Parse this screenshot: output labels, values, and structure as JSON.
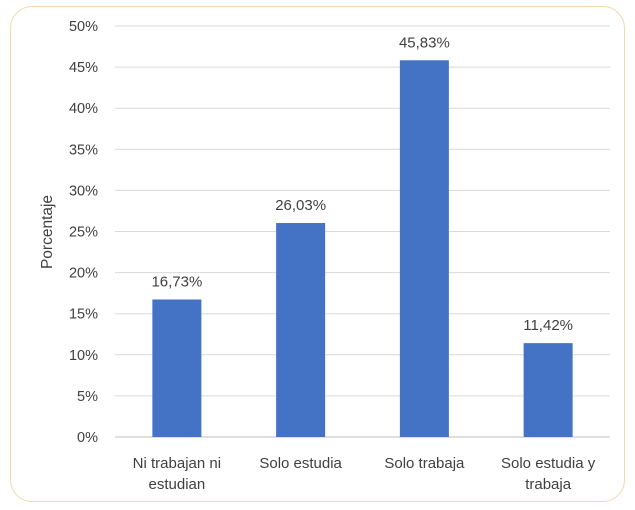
{
  "chart_data": {
    "type": "bar",
    "title": "",
    "xlabel": "",
    "ylabel": "Porcentaje",
    "ylim": [
      0,
      50
    ],
    "yticks": [
      {
        "value": 0,
        "label": "0%"
      },
      {
        "value": 5,
        "label": "5%"
      },
      {
        "value": 10,
        "label": "10%"
      },
      {
        "value": 15,
        "label": "15%"
      },
      {
        "value": 20,
        "label": "20%"
      },
      {
        "value": 25,
        "label": "25%"
      },
      {
        "value": 30,
        "label": "30%"
      },
      {
        "value": 35,
        "label": "35%"
      },
      {
        "value": 40,
        "label": "40%"
      },
      {
        "value": 45,
        "label": "45%"
      },
      {
        "value": 50,
        "label": "50%"
      }
    ],
    "categories": [
      [
        "Ni trabajan ni",
        "estudian"
      ],
      [
        "Solo estudia"
      ],
      [
        "Solo trabaja"
      ],
      [
        "Solo estudia y",
        "trabaja"
      ]
    ],
    "values": [
      16.73,
      26.03,
      45.83,
      11.42
    ],
    "data_labels": [
      "16,73%",
      "26,03%",
      "45,83%",
      "11,42%"
    ],
    "grid": true,
    "legend": "none",
    "colors": {
      "bar": "#4472c4",
      "grid": "#d9d9d9",
      "border": "#f1d9ad",
      "text": "#404040"
    }
  }
}
